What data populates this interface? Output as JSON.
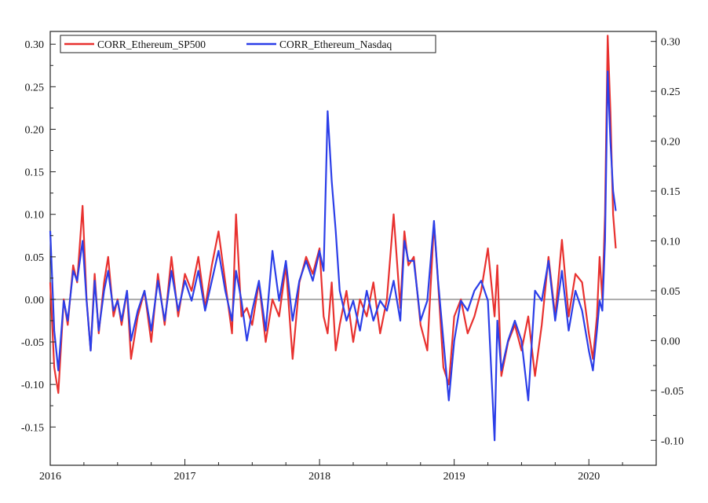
{
  "chart_data": {
    "type": "line",
    "title": "",
    "xlabel": "",
    "ylabel": "",
    "x_ticks": [
      "2016",
      "2017",
      "2018",
      "2019",
      "2020"
    ],
    "x_range": [
      2016.0,
      2020.5
    ],
    "y_left": {
      "range": [
        -0.195,
        0.315
      ],
      "ticks": [
        0.3,
        0.25,
        0.2,
        0.15,
        0.1,
        0.05,
        0.0,
        -0.05,
        -0.1,
        -0.15
      ],
      "tick_labels": [
        "0.30",
        "0.25",
        "0.20",
        "0.15",
        "0.10",
        "0.05",
        "0.00",
        "-0.05",
        "-0.10",
        "-0.15"
      ]
    },
    "y_right": {
      "range": [
        -0.125,
        0.31
      ],
      "ticks": [
        0.3,
        0.25,
        0.2,
        0.15,
        0.1,
        0.05,
        0.0,
        -0.05,
        -0.1
      ],
      "tick_labels": [
        "0.30",
        "0.25",
        "0.20",
        "0.15",
        "0.10",
        "0.05",
        "0.00",
        "-0.05",
        "-0.10"
      ]
    },
    "reference_line": {
      "axis": "left",
      "value": 0.0,
      "color": "#888888"
    },
    "grid": false,
    "legend": {
      "placement": "top-left"
    },
    "series": [
      {
        "name": "CORR_Ethereum_SP500",
        "axis": "left",
        "color": "#e8312f",
        "x": [
          2016.0,
          2016.03,
          2016.06,
          2016.1,
          2016.13,
          2016.17,
          2016.2,
          2016.24,
          2016.27,
          2016.3,
          2016.33,
          2016.36,
          2016.4,
          2016.43,
          2016.47,
          2016.5,
          2016.53,
          2016.57,
          2016.6,
          2016.65,
          2016.7,
          2016.75,
          2016.8,
          2016.85,
          2016.9,
          2016.95,
          2017.0,
          2017.05,
          2017.1,
          2017.15,
          2017.2,
          2017.25,
          2017.3,
          2017.35,
          2017.38,
          2017.42,
          2017.46,
          2017.5,
          2017.55,
          2017.6,
          2017.65,
          2017.7,
          2017.75,
          2017.8,
          2017.85,
          2017.9,
          2017.95,
          2018.0,
          2018.03,
          2018.06,
          2018.09,
          2018.12,
          2018.15,
          2018.2,
          2018.25,
          2018.3,
          2018.35,
          2018.4,
          2018.45,
          2018.5,
          2018.55,
          2018.6,
          2018.63,
          2018.66,
          2018.7,
          2018.75,
          2018.8,
          2018.85,
          2018.88,
          2018.92,
          2018.96,
          2019.0,
          2019.05,
          2019.1,
          2019.15,
          2019.2,
          2019.25,
          2019.3,
          2019.32,
          2019.35,
          2019.4,
          2019.45,
          2019.5,
          2019.55,
          2019.6,
          2019.65,
          2019.7,
          2019.75,
          2019.8,
          2019.85,
          2019.9,
          2019.95,
          2020.0,
          2020.03,
          2020.06,
          2020.08,
          2020.1,
          2020.12,
          2020.14,
          2020.16,
          2020.18,
          2020.2
        ],
        "y": [
          0.02,
          -0.08,
          -0.11,
          0.0,
          -0.03,
          0.04,
          0.02,
          0.11,
          0.0,
          -0.06,
          0.03,
          -0.04,
          0.02,
          0.05,
          -0.02,
          0.0,
          -0.03,
          0.01,
          -0.07,
          -0.02,
          0.01,
          -0.05,
          0.03,
          -0.03,
          0.05,
          -0.02,
          0.03,
          0.01,
          0.05,
          -0.01,
          0.04,
          0.08,
          0.02,
          -0.04,
          0.1,
          -0.02,
          -0.01,
          -0.03,
          0.02,
          -0.05,
          0.0,
          -0.02,
          0.04,
          -0.07,
          0.02,
          0.05,
          0.03,
          0.06,
          -0.02,
          -0.04,
          0.02,
          -0.06,
          -0.03,
          0.01,
          -0.05,
          0.0,
          -0.02,
          0.02,
          -0.04,
          0.0,
          0.1,
          -0.01,
          0.08,
          0.04,
          0.05,
          -0.03,
          -0.06,
          0.09,
          0.02,
          -0.08,
          -0.1,
          -0.02,
          0.0,
          -0.04,
          -0.02,
          0.01,
          0.06,
          -0.02,
          0.04,
          -0.09,
          -0.05,
          -0.03,
          -0.06,
          -0.02,
          -0.09,
          -0.03,
          0.05,
          -0.02,
          0.07,
          -0.02,
          0.03,
          0.02,
          -0.04,
          -0.07,
          -0.02,
          0.05,
          0.0,
          0.1,
          0.31,
          0.22,
          0.1,
          0.06
        ]
      },
      {
        "name": "CORR_Ethereum_Nasdaq",
        "axis": "right",
        "color": "#2b3ee8",
        "x": [
          2016.0,
          2016.03,
          2016.06,
          2016.1,
          2016.13,
          2016.17,
          2016.2,
          2016.24,
          2016.27,
          2016.3,
          2016.33,
          2016.36,
          2016.4,
          2016.43,
          2016.47,
          2016.5,
          2016.53,
          2016.57,
          2016.6,
          2016.65,
          2016.7,
          2016.75,
          2016.8,
          2016.85,
          2016.9,
          2016.95,
          2017.0,
          2017.05,
          2017.1,
          2017.15,
          2017.2,
          2017.25,
          2017.3,
          2017.35,
          2017.38,
          2017.42,
          2017.46,
          2017.5,
          2017.55,
          2017.6,
          2017.65,
          2017.7,
          2017.75,
          2017.8,
          2017.85,
          2017.9,
          2017.95,
          2018.0,
          2018.03,
          2018.06,
          2018.09,
          2018.12,
          2018.15,
          2018.2,
          2018.25,
          2018.3,
          2018.35,
          2018.4,
          2018.45,
          2018.5,
          2018.55,
          2018.6,
          2018.63,
          2018.66,
          2018.7,
          2018.75,
          2018.8,
          2018.85,
          2018.88,
          2018.92,
          2018.96,
          2019.0,
          2019.05,
          2019.1,
          2019.15,
          2019.2,
          2019.25,
          2019.3,
          2019.32,
          2019.35,
          2019.4,
          2019.45,
          2019.5,
          2019.55,
          2019.6,
          2019.65,
          2019.7,
          2019.75,
          2019.8,
          2019.85,
          2019.9,
          2019.95,
          2020.0,
          2020.03,
          2020.06,
          2020.08,
          2020.1,
          2020.12,
          2020.14,
          2020.16,
          2020.18,
          2020.2
        ],
        "y": [
          0.11,
          0.01,
          -0.03,
          0.04,
          0.02,
          0.07,
          0.06,
          0.1,
          0.04,
          -0.01,
          0.06,
          0.01,
          0.05,
          0.07,
          0.03,
          0.04,
          0.02,
          0.05,
          0.0,
          0.03,
          0.05,
          0.01,
          0.06,
          0.02,
          0.07,
          0.03,
          0.06,
          0.04,
          0.07,
          0.03,
          0.06,
          0.09,
          0.05,
          0.02,
          0.07,
          0.04,
          0.0,
          0.03,
          0.06,
          0.01,
          0.09,
          0.04,
          0.08,
          0.02,
          0.06,
          0.08,
          0.06,
          0.09,
          0.07,
          0.23,
          0.16,
          0.11,
          0.05,
          0.02,
          0.04,
          0.01,
          0.05,
          0.02,
          0.04,
          0.03,
          0.06,
          0.02,
          0.1,
          0.08,
          0.08,
          0.02,
          0.04,
          0.12,
          0.06,
          0.0,
          -0.06,
          0.0,
          0.04,
          0.03,
          0.05,
          0.06,
          0.04,
          -0.1,
          0.02,
          -0.03,
          0.0,
          0.02,
          0.0,
          -0.06,
          0.05,
          0.04,
          0.08,
          0.02,
          0.07,
          0.01,
          0.05,
          0.03,
          -0.01,
          -0.03,
          0.01,
          0.04,
          0.03,
          0.1,
          0.27,
          0.2,
          0.15,
          0.13
        ]
      }
    ]
  }
}
